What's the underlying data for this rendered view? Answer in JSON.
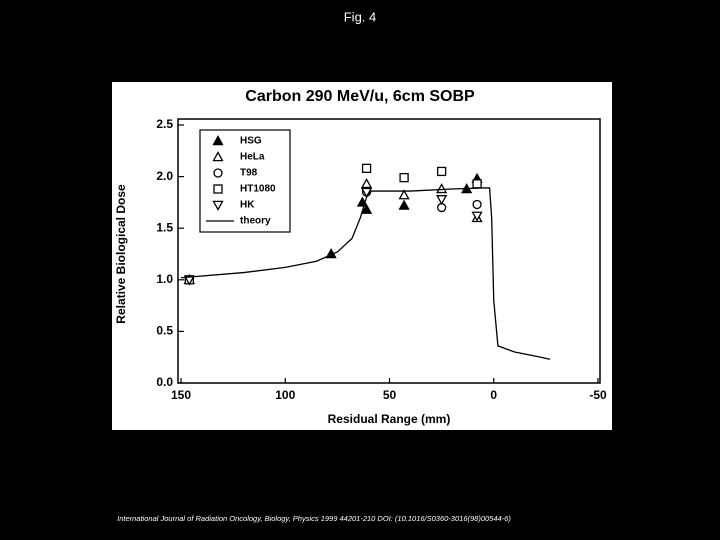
{
  "title": "Fig. 4",
  "caption": "International Journal of Radiation Oncology, Biology, Physics 1999 44201-210 DOI: (10.1016/S0360-3016(98)00544-6)",
  "chart_data": {
    "type": "scatter",
    "title": "Carbon 290 MeV/u, 6cm SOBP",
    "x_label": "Residual Range (mm)",
    "y_label": "Relative Biological Dose",
    "xlim": [
      150,
      -50
    ],
    "ylim": [
      0,
      2.5
    ],
    "xticks": [
      150,
      100,
      50,
      0,
      -50
    ],
    "yticks": [
      {
        "value": 0,
        "label": "0.0"
      },
      0.5,
      {
        "value": 1,
        "label": "1.0"
      },
      1.5,
      {
        "value": 2,
        "label": "2.0"
      },
      2.5
    ],
    "legend": "top-left",
    "series": [
      {
        "name": "HSG",
        "color": "#000000",
        "marker": "triangle-filled",
        "x": [
          146,
          78,
          63,
          61,
          43,
          13,
          8
        ],
        "values": [
          1.0,
          1.25,
          1.75,
          1.68,
          1.72,
          1.88,
          1.98
        ]
      },
      {
        "name": "HeLa",
        "color": "#000000",
        "marker": "triangle-open",
        "x": [
          146,
          61,
          43,
          25,
          8
        ],
        "values": [
          1.0,
          1.93,
          1.82,
          1.88,
          1.6
        ]
      },
      {
        "name": "T98",
        "color": "#000000",
        "marker": "circle-open",
        "x": [
          146,
          61,
          25,
          8
        ],
        "values": [
          1.0,
          1.85,
          1.7,
          1.73
        ]
      },
      {
        "name": "HT1080",
        "color": "#000000",
        "marker": "square-open",
        "x": [
          146,
          61,
          43,
          25,
          8
        ],
        "values": [
          1.0,
          2.08,
          1.99,
          2.05,
          1.93
        ]
      },
      {
        "name": "HK",
        "color": "#000000",
        "marker": "triangle-down-open",
        "x": [
          146,
          61,
          25,
          8
        ],
        "values": [
          1.0,
          1.85,
          1.78,
          1.62
        ]
      },
      {
        "name": "theory",
        "color": "#000000",
        "marker": "line",
        "x": [
          150,
          120,
          100,
          85,
          75,
          68,
          64,
          61,
          59,
          40,
          20,
          5,
          2,
          1,
          0,
          -2,
          -10,
          -20,
          -27
        ],
        "values": [
          1.02,
          1.07,
          1.12,
          1.18,
          1.27,
          1.4,
          1.6,
          1.8,
          1.86,
          1.86,
          1.88,
          1.89,
          1.89,
          1.6,
          0.8,
          0.36,
          0.3,
          0.26,
          0.23
        ]
      }
    ]
  }
}
